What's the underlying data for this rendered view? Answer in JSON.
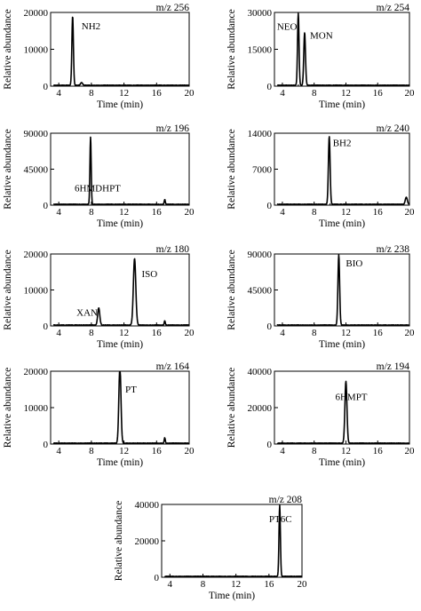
{
  "chart_data": [
    {
      "type": "line",
      "mz": "m/z 256",
      "xlabel": "Time (min)",
      "ylabel": "Relative abundance",
      "xlim": [
        3,
        20
      ],
      "ylim": [
        0,
        20000
      ],
      "xticks": [
        4,
        8,
        12,
        16,
        20
      ],
      "yticks": [
        0,
        10000,
        20000
      ],
      "peaks": [
        {
          "label": "NH2",
          "rt": 5.7,
          "height": 18800,
          "width": 0.22
        },
        {
          "label": "",
          "rt": 6.8,
          "height": 700,
          "width": 0.3
        }
      ]
    },
    {
      "type": "line",
      "mz": "m/z 254",
      "xlabel": "Time (min)",
      "ylabel": "Relative abundance",
      "xlim": [
        3,
        20
      ],
      "ylim": [
        0,
        30000
      ],
      "xticks": [
        4,
        8,
        12,
        16,
        20
      ],
      "yticks": [
        0,
        15000,
        30000
      ],
      "peaks": [
        {
          "label": "NEO",
          "rt": 6.0,
          "height": 29500,
          "width": 0.22
        },
        {
          "label": "MON",
          "rt": 6.8,
          "height": 21500,
          "width": 0.25
        }
      ]
    },
    {
      "type": "line",
      "mz": "m/z 196",
      "xlabel": "Time (min)",
      "ylabel": "Relative abundance",
      "xlim": [
        3,
        20
      ],
      "ylim": [
        0,
        90000
      ],
      "xticks": [
        4,
        8,
        12,
        16,
        20
      ],
      "yticks": [
        0,
        45000,
        90000
      ],
      "peaks": [
        {
          "label": "6HMDHPT",
          "rt": 7.9,
          "height": 84000,
          "width": 0.18
        },
        {
          "label": "",
          "rt": 17.0,
          "height": 6000,
          "width": 0.15
        }
      ]
    },
    {
      "type": "line",
      "mz": "m/z 240",
      "xlabel": "Time (min)",
      "ylabel": "Relative abundance",
      "xlim": [
        3,
        20
      ],
      "ylim": [
        0,
        14000
      ],
      "xticks": [
        4,
        8,
        12,
        16,
        20
      ],
      "yticks": [
        0,
        7000,
        14000
      ],
      "peaks": [
        {
          "label": "BH2",
          "rt": 9.9,
          "height": 13200,
          "width": 0.25
        },
        {
          "label": "",
          "rt": 19.6,
          "height": 1400,
          "width": 0.3
        }
      ]
    },
    {
      "type": "line",
      "mz": "m/z 180",
      "xlabel": "Time (min)",
      "ylabel": "Relative abundance",
      "xlim": [
        3,
        20
      ],
      "ylim": [
        0,
        20000
      ],
      "xticks": [
        4,
        8,
        12,
        16,
        20
      ],
      "yticks": [
        0,
        10000,
        20000
      ],
      "peaks": [
        {
          "label": "XAN",
          "rt": 8.9,
          "height": 4800,
          "width": 0.3
        },
        {
          "label": "ISO",
          "rt": 13.3,
          "height": 18500,
          "width": 0.35
        },
        {
          "label": "",
          "rt": 17.0,
          "height": 1200,
          "width": 0.15
        }
      ]
    },
    {
      "type": "line",
      "mz": "m/z 238",
      "xlabel": "Time (min)",
      "ylabel": "Relative abundance",
      "xlim": [
        3,
        20
      ],
      "ylim": [
        0,
        90000
      ],
      "xticks": [
        4,
        8,
        12,
        16,
        20
      ],
      "yticks": [
        0,
        45000,
        90000
      ],
      "peaks": [
        {
          "label": "BIO",
          "rt": 11.1,
          "height": 88000,
          "width": 0.25
        }
      ]
    },
    {
      "type": "line",
      "mz": "m/z 164",
      "xlabel": "Time (min)",
      "ylabel": "Relative abundance",
      "xlim": [
        3,
        20
      ],
      "ylim": [
        0,
        20000
      ],
      "xticks": [
        4,
        8,
        12,
        16,
        20
      ],
      "yticks": [
        0,
        10000,
        20000
      ],
      "peaks": [
        {
          "label": "PT",
          "rt": 11.5,
          "height": 21500,
          "width": 0.3
        },
        {
          "label": "",
          "rt": 17.0,
          "height": 1500,
          "width": 0.15
        }
      ]
    },
    {
      "type": "line",
      "mz": "m/z 194",
      "xlabel": "Time (min)",
      "ylabel": "Relative abundance",
      "xlim": [
        3,
        20
      ],
      "ylim": [
        0,
        40000
      ],
      "xticks": [
        4,
        8,
        12,
        16,
        20
      ],
      "yticks": [
        0,
        20000,
        40000
      ],
      "peaks": [
        {
          "label": "6HMPT",
          "rt": 12.0,
          "height": 34000,
          "width": 0.3
        }
      ]
    },
    {
      "type": "line",
      "mz": "m/z 208",
      "xlabel": "Time (min)",
      "ylabel": "Relative abundance",
      "xlim": [
        3,
        20
      ],
      "ylim": [
        0,
        40000
      ],
      "xticks": [
        4,
        8,
        12,
        16,
        20
      ],
      "yticks": [
        0,
        20000,
        40000
      ],
      "peaks": [
        {
          "label": "PT6C",
          "rt": 17.3,
          "height": 39000,
          "width": 0.2
        }
      ]
    }
  ]
}
